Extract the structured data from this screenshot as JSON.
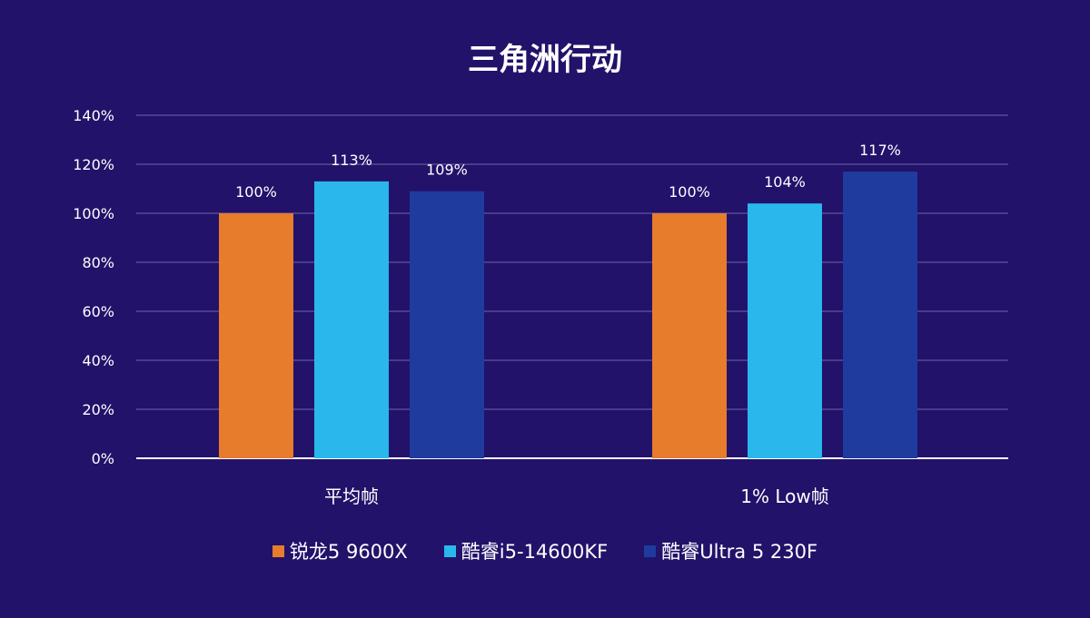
{
  "chart_data": {
    "type": "bar",
    "title": "三角洲行动",
    "categories": [
      "平均帧",
      "1% Low帧"
    ],
    "series": [
      {
        "name": "锐龙5 9600X",
        "color": "#e67c2c",
        "values": [
          100,
          100
        ]
      },
      {
        "name": "酷睿i5-14600KF",
        "color": "#2ab8ec",
        "values": [
          113,
          104
        ]
      },
      {
        "name": "酷睿Ultra 5 230F",
        "color": "#1f3b9e",
        "values": [
          109,
          117
        ]
      }
    ],
    "yticks": [
      0,
      20,
      40,
      60,
      80,
      100,
      120,
      140
    ],
    "ylim": [
      0,
      140
    ],
    "yunit": "%",
    "grid": true,
    "legend_position": "bottom"
  }
}
